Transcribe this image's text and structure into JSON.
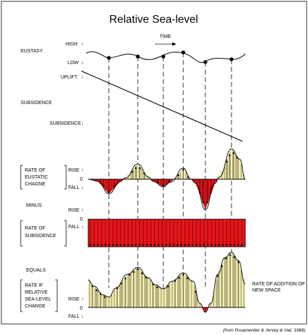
{
  "title": "Relative Sea-level",
  "time_label": "TIME",
  "eustasy": {
    "label": "EUSTASY",
    "high": "HIGH",
    "low": "LOW",
    "uplift": "UPLIFT"
  },
  "subsidence": {
    "label": "SUBSIDENCE",
    "sub": "SUBSIDENCE"
  },
  "rate_eustatic": {
    "line1": "RATE OF",
    "line2": "EUSTATIC",
    "line3": "CHAGNE",
    "rise": "RISE",
    "zero": "0",
    "fall": "FALL"
  },
  "minus": "MINUS",
  "rate_subsidence": {
    "line1": "RATE OF",
    "line2": "SUBSIDENCE",
    "rise": "RISE",
    "zero": "0",
    "fall": "FALL"
  },
  "equals": "EQUALS",
  "rate_relative": {
    "line1": "RATE IF",
    "line2": "RELATIVE",
    "line3": "SEA-LEVEL",
    "line4": "CHANGE",
    "rise": "RISE",
    "zero": "0",
    "fall": "FALL"
  },
  "new_space": {
    "line1": "RATE OF ADDITION OF",
    "line2": "NEW SPACE"
  },
  "citation": "(from Posamentier & Jervey & Vail, 1988)",
  "colors": {
    "rise_fill": "#f7f0b0",
    "fall_fill": "#e8151b",
    "outline": "#000000"
  }
}
